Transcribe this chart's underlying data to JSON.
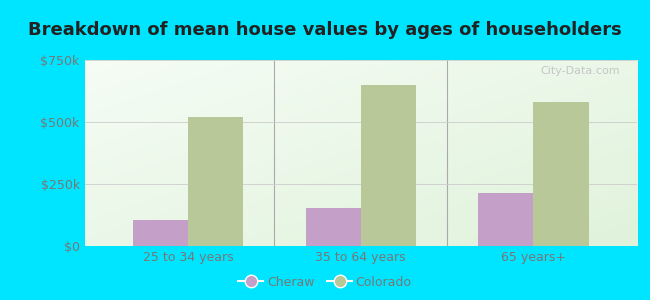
{
  "title": "Breakdown of mean house values by ages of householders",
  "categories": [
    "25 to 34 years",
    "35 to 64 years",
    "65 years+"
  ],
  "cheraw_values": [
    105000,
    155000,
    215000
  ],
  "colorado_values": [
    520000,
    650000,
    580000
  ],
  "cheraw_color": "#c4a0c8",
  "colorado_color": "#b8c899",
  "ylim": [
    0,
    750000
  ],
  "yticks": [
    0,
    250000,
    500000,
    750000
  ],
  "ytick_labels": [
    "$0",
    "$250k",
    "$500k",
    "$750k"
  ],
  "plot_bg_color": "#eefaee",
  "outer_background": "#00e5ff",
  "legend_labels": [
    "Cheraw",
    "Colorado"
  ],
  "bar_width": 0.32,
  "title_fontsize": 13,
  "tick_fontsize": 9,
  "legend_fontsize": 9,
  "tick_color": "#777777",
  "title_color": "#222222",
  "separator_color": "#aaaaaa"
}
